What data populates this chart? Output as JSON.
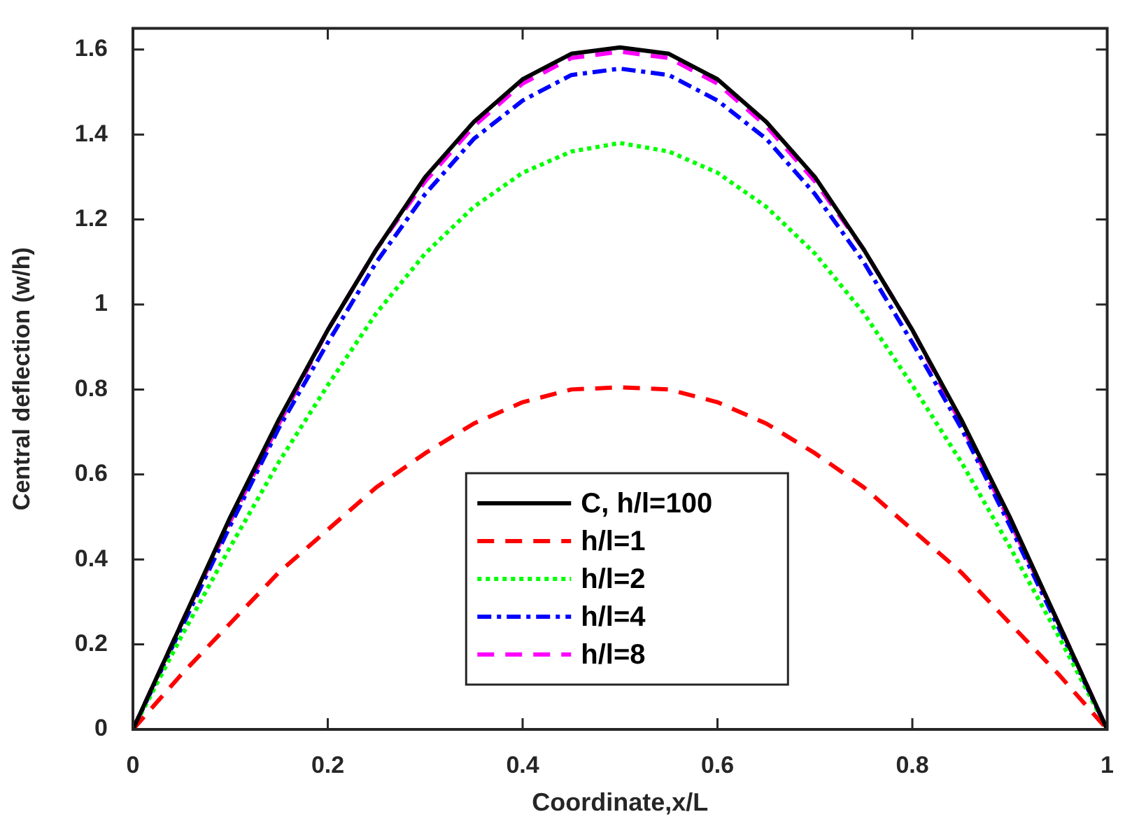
{
  "chart_data": {
    "type": "line",
    "xlabel": "Coordinate,x/L",
    "ylabel": "Central deflection (w/h)",
    "x": [
      0,
      0.05,
      0.1,
      0.15,
      0.2,
      0.25,
      0.3,
      0.35,
      0.4,
      0.45,
      0.5,
      0.55,
      0.6,
      0.65,
      0.7,
      0.75,
      0.8,
      0.85,
      0.9,
      0.95,
      1
    ],
    "series": [
      {
        "name": "C, h/l=100",
        "color": "#000000",
        "line_style": "solid",
        "values": [
          0,
          0.25,
          0.5,
          0.73,
          0.94,
          1.13,
          1.3,
          1.43,
          1.53,
          1.59,
          1.605,
          1.59,
          1.53,
          1.43,
          1.3,
          1.13,
          0.94,
          0.73,
          0.5,
          0.25,
          0
        ]
      },
      {
        "name": "h/l=1",
        "color": "#ff0000",
        "line_style": "dashed",
        "values": [
          0,
          0.13,
          0.25,
          0.37,
          0.47,
          0.57,
          0.65,
          0.72,
          0.77,
          0.8,
          0.805,
          0.8,
          0.77,
          0.72,
          0.65,
          0.57,
          0.47,
          0.37,
          0.25,
          0.13,
          0
        ]
      },
      {
        "name": "h/l=2",
        "color": "#00ff00",
        "line_style": "dotted",
        "values": [
          0,
          0.22,
          0.43,
          0.63,
          0.81,
          0.98,
          1.12,
          1.23,
          1.31,
          1.36,
          1.38,
          1.36,
          1.31,
          1.23,
          1.12,
          0.98,
          0.81,
          0.63,
          0.43,
          0.22,
          0
        ]
      },
      {
        "name": "h/l=4",
        "color": "#0000ff",
        "line_style": "dashdot",
        "values": [
          0,
          0.24,
          0.48,
          0.71,
          0.91,
          1.1,
          1.26,
          1.39,
          1.48,
          1.54,
          1.555,
          1.54,
          1.48,
          1.39,
          1.26,
          1.1,
          0.91,
          0.71,
          0.48,
          0.24,
          0
        ]
      },
      {
        "name": "h/l=8",
        "color": "#ff00ff",
        "line_style": "dashed",
        "values": [
          0,
          0.25,
          0.49,
          0.72,
          0.94,
          1.13,
          1.29,
          1.42,
          1.52,
          1.58,
          1.595,
          1.58,
          1.52,
          1.42,
          1.29,
          1.13,
          0.94,
          0.72,
          0.49,
          0.25,
          0
        ]
      }
    ],
    "xlim": [
      0,
      1
    ],
    "xticks": [
      0,
      0.2,
      0.4,
      0.6,
      0.8,
      1
    ],
    "ylim": [
      0,
      1.65
    ],
    "yticks": [
      0,
      0.2,
      0.4,
      0.6,
      0.8,
      1,
      1.2,
      1.4,
      1.6
    ],
    "grid": false,
    "legend": "bottom",
    "marker": "none"
  }
}
